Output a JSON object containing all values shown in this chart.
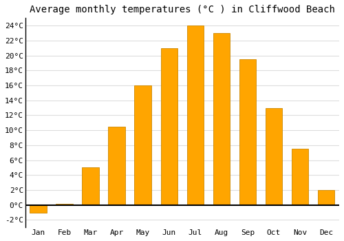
{
  "title": "Average monthly temperatures (°C ) in Cliffwood Beach",
  "months": [
    "Jan",
    "Feb",
    "Mar",
    "Apr",
    "May",
    "Jun",
    "Jul",
    "Aug",
    "Sep",
    "Oct",
    "Nov",
    "Dec"
  ],
  "values": [
    -1.0,
    0.2,
    5.0,
    10.5,
    16.0,
    21.0,
    24.0,
    23.0,
    19.5,
    13.0,
    7.5,
    2.0
  ],
  "bar_color": "#FFA500",
  "bar_edge_color": "#CC8800",
  "background_color": "#FFFFFF",
  "plot_bg_color": "#FFFFFF",
  "grid_color": "#DDDDDD",
  "ylim": [
    -3,
    25
  ],
  "yticks": [
    -2,
    0,
    2,
    4,
    6,
    8,
    10,
    12,
    14,
    16,
    18,
    20,
    22,
    24
  ],
  "title_fontsize": 10,
  "tick_fontsize": 8,
  "font_family": "monospace"
}
